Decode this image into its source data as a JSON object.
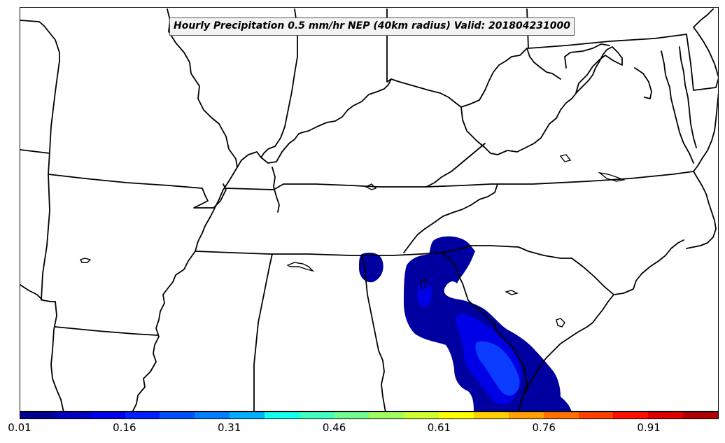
{
  "title": "Hourly Precipitation 0.5 mm/hr NEP (40km radius) Valid: 201804231000",
  "colorbar": {
    "colors": [
      "#00008f",
      "#0000bf",
      "#0000ef",
      "#0020ff",
      "#0050ff",
      "#0080ff",
      "#00b0ff",
      "#10ffef",
      "#40ffbf",
      "#70ff8f",
      "#a0ff5f",
      "#d0ff2f",
      "#ffff00",
      "#ffcf00",
      "#ff9f00",
      "#ff7000",
      "#ff4000",
      "#ff1000",
      "#df0000",
      "#af0000"
    ],
    "tick_labels": [
      "0.01",
      "0.16",
      "0.31",
      "0.46",
      "0.61",
      "0.76",
      "0.91"
    ]
  },
  "colors": {
    "prob_low": "#0000a0",
    "prob_mid": "#0000e6",
    "prob_high": "#0a3cff",
    "borders": "#000000"
  }
}
